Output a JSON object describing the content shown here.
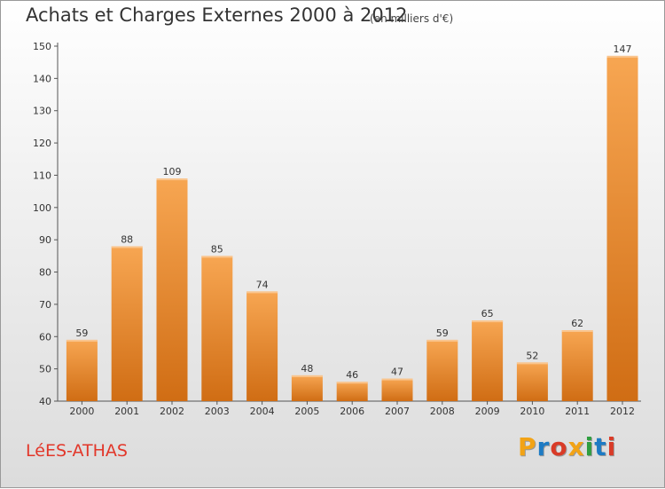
{
  "chart_data": {
    "type": "bar",
    "title": "Achats et Charges Externes 2000 à 2012",
    "subtitle": "(en milliers d'€)",
    "categories": [
      "2000",
      "2001",
      "2002",
      "2003",
      "2004",
      "2005",
      "2006",
      "2007",
      "2008",
      "2009",
      "2010",
      "2011",
      "2012"
    ],
    "values": [
      59,
      88,
      109,
      85,
      74,
      48,
      46,
      47,
      59,
      65,
      52,
      62,
      147
    ],
    "ylim": [
      40,
      150
    ],
    "yticks": [
      40,
      50,
      60,
      70,
      80,
      90,
      100,
      110,
      120,
      130,
      140,
      150
    ],
    "grid": false,
    "bar_color_top": "#f7a652",
    "bar_color_bottom": "#d06d14"
  },
  "footer": {
    "place": "LéES-ATHAS",
    "brand_letters": [
      "P",
      "r",
      "o",
      "x",
      "i",
      "t",
      "i"
    ],
    "brand_colors": [
      "#f2a316",
      "#1d7bc4",
      "#d93b27",
      "#f2a316",
      "#2f9e3f",
      "#1d7bc4",
      "#d93b27"
    ]
  }
}
